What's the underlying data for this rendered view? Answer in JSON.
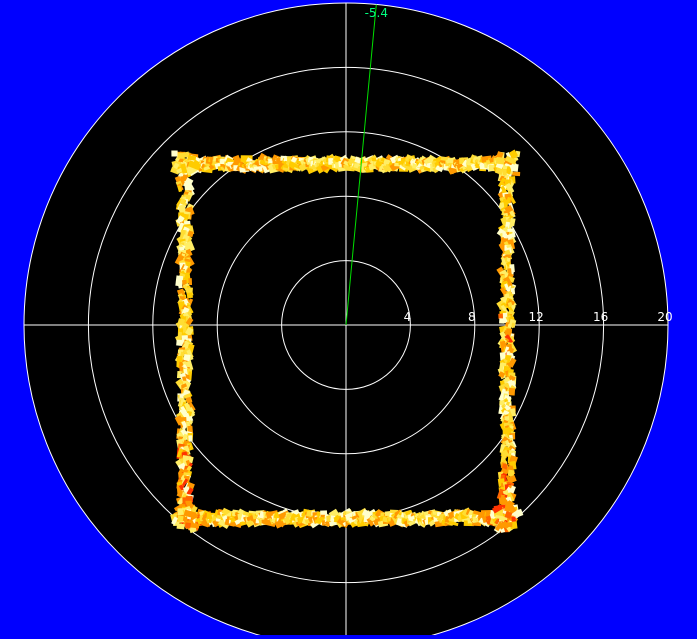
{
  "colors": {
    "background": "#0000ff",
    "plot": "#000000",
    "grid": "#ffffff",
    "bearing": "#00e000",
    "bearing_label": "#00ff7f"
  },
  "bearing": {
    "label": "-5.4",
    "angle_deg": 5.4
  },
  "rings": {
    "max_range": 20,
    "labels": [
      "4",
      "8",
      "12",
      "16",
      "20"
    ],
    "values": [
      4,
      8,
      12,
      16,
      20
    ]
  },
  "returns": {
    "shape": "rectangle",
    "x_range": [
      -10,
      10
    ],
    "y_range": [
      -12,
      10
    ],
    "colors": [
      "#ffffcc",
      "#ffee66",
      "#ffdd33",
      "#ffcc00",
      "#ff9900",
      "#ff6600",
      "#ff3300"
    ]
  }
}
